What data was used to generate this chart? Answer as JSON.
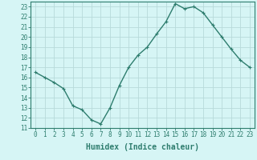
{
  "xlabel": "Humidex (Indice chaleur)",
  "ylabel": "",
  "x": [
    0,
    1,
    2,
    3,
    4,
    5,
    6,
    7,
    8,
    9,
    10,
    11,
    12,
    13,
    14,
    15,
    16,
    17,
    18,
    19,
    20,
    21,
    22,
    23
  ],
  "y": [
    16.5,
    16.0,
    15.5,
    14.9,
    13.2,
    12.8,
    11.8,
    11.4,
    13.0,
    15.2,
    17.0,
    18.2,
    19.0,
    20.3,
    21.5,
    23.3,
    22.8,
    23.0,
    22.4,
    21.2,
    20.0,
    18.8,
    17.7,
    17.0
  ],
  "line_color": "#2e7d6e",
  "marker": "+",
  "marker_size": 3,
  "bg_color": "#d6f5f5",
  "grid_color": "#b8dada",
  "ylim_min": 11,
  "ylim_max": 23.5,
  "yticks": [
    11,
    12,
    13,
    14,
    15,
    16,
    17,
    18,
    19,
    20,
    21,
    22,
    23
  ],
  "xticks": [
    0,
    1,
    2,
    3,
    4,
    5,
    6,
    7,
    8,
    9,
    10,
    11,
    12,
    13,
    14,
    15,
    16,
    17,
    18,
    19,
    20,
    21,
    22,
    23
  ],
  "tick_label_fontsize": 5.5,
  "xlabel_fontsize": 7.0,
  "line_width": 1.0
}
